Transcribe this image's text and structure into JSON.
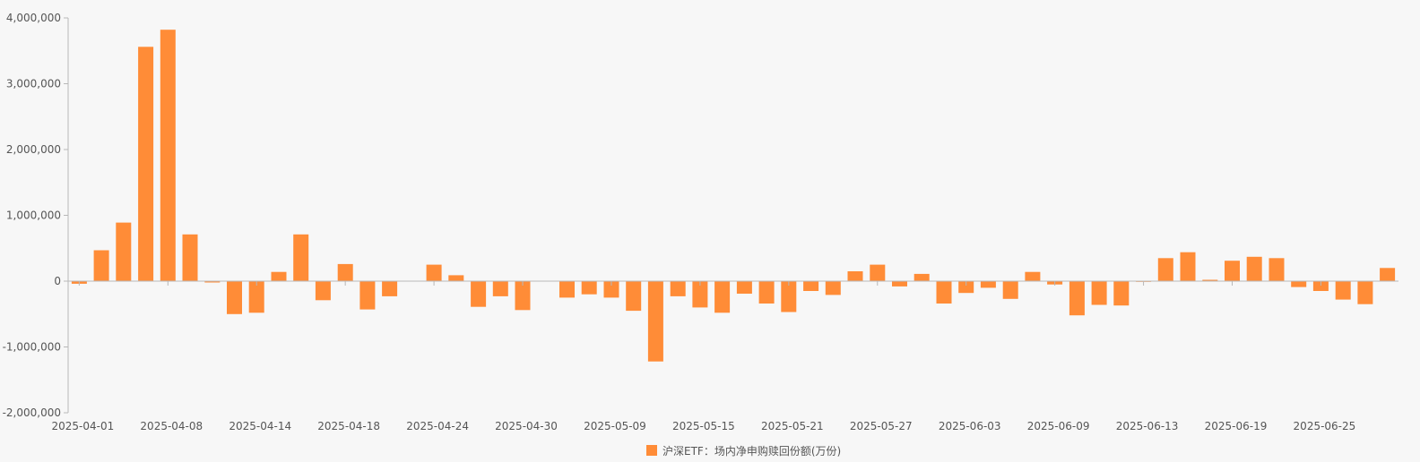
{
  "chart_data": {
    "type": "bar",
    "title": "",
    "xlabel": "",
    "ylabel": "",
    "ylim": [
      -2000000,
      4000000
    ],
    "y_ticks": [
      4000000,
      3000000,
      2000000,
      1000000,
      0,
      -1000000,
      -2000000
    ],
    "y_tick_labels": [
      "4,000,000",
      "3,000,000",
      "2,000,000",
      "1,000,000",
      "0",
      "-1,000,000",
      "-2,000,000"
    ],
    "x_tick_labels": [
      "2025-04-01",
      "2025-04-08",
      "2025-04-14",
      "2025-04-18",
      "2025-04-24",
      "2025-04-30",
      "2025-05-09",
      "2025-05-15",
      "2025-05-21",
      "2025-05-27",
      "2025-06-03",
      "2025-06-09",
      "2025-06-13",
      "2025-06-19",
      "2025-06-25"
    ],
    "x_tick_every": 4,
    "grid": false,
    "legend_position": "bottom-center",
    "series": [
      {
        "name": "沪深ETF：场内净申购赎回份额(万份)",
        "color": "#ff8c37",
        "values": [
          -40000,
          470000,
          890000,
          3560000,
          3820000,
          710000,
          -20000,
          -500000,
          -480000,
          140000,
          710000,
          -290000,
          260000,
          -430000,
          -230000,
          0,
          250000,
          90000,
          -390000,
          -230000,
          -440000,
          0,
          -250000,
          -200000,
          -250000,
          -450000,
          -1220000,
          -230000,
          -400000,
          -480000,
          -190000,
          -340000,
          -470000,
          -150000,
          -210000,
          150000,
          250000,
          -80000,
          110000,
          -340000,
          -180000,
          -100000,
          -270000,
          140000,
          -50000,
          -520000,
          -360000,
          -370000,
          -10000,
          350000,
          440000,
          20000,
          310000,
          370000,
          350000,
          -90000,
          -150000,
          -280000,
          -350000,
          200000
        ]
      }
    ]
  }
}
